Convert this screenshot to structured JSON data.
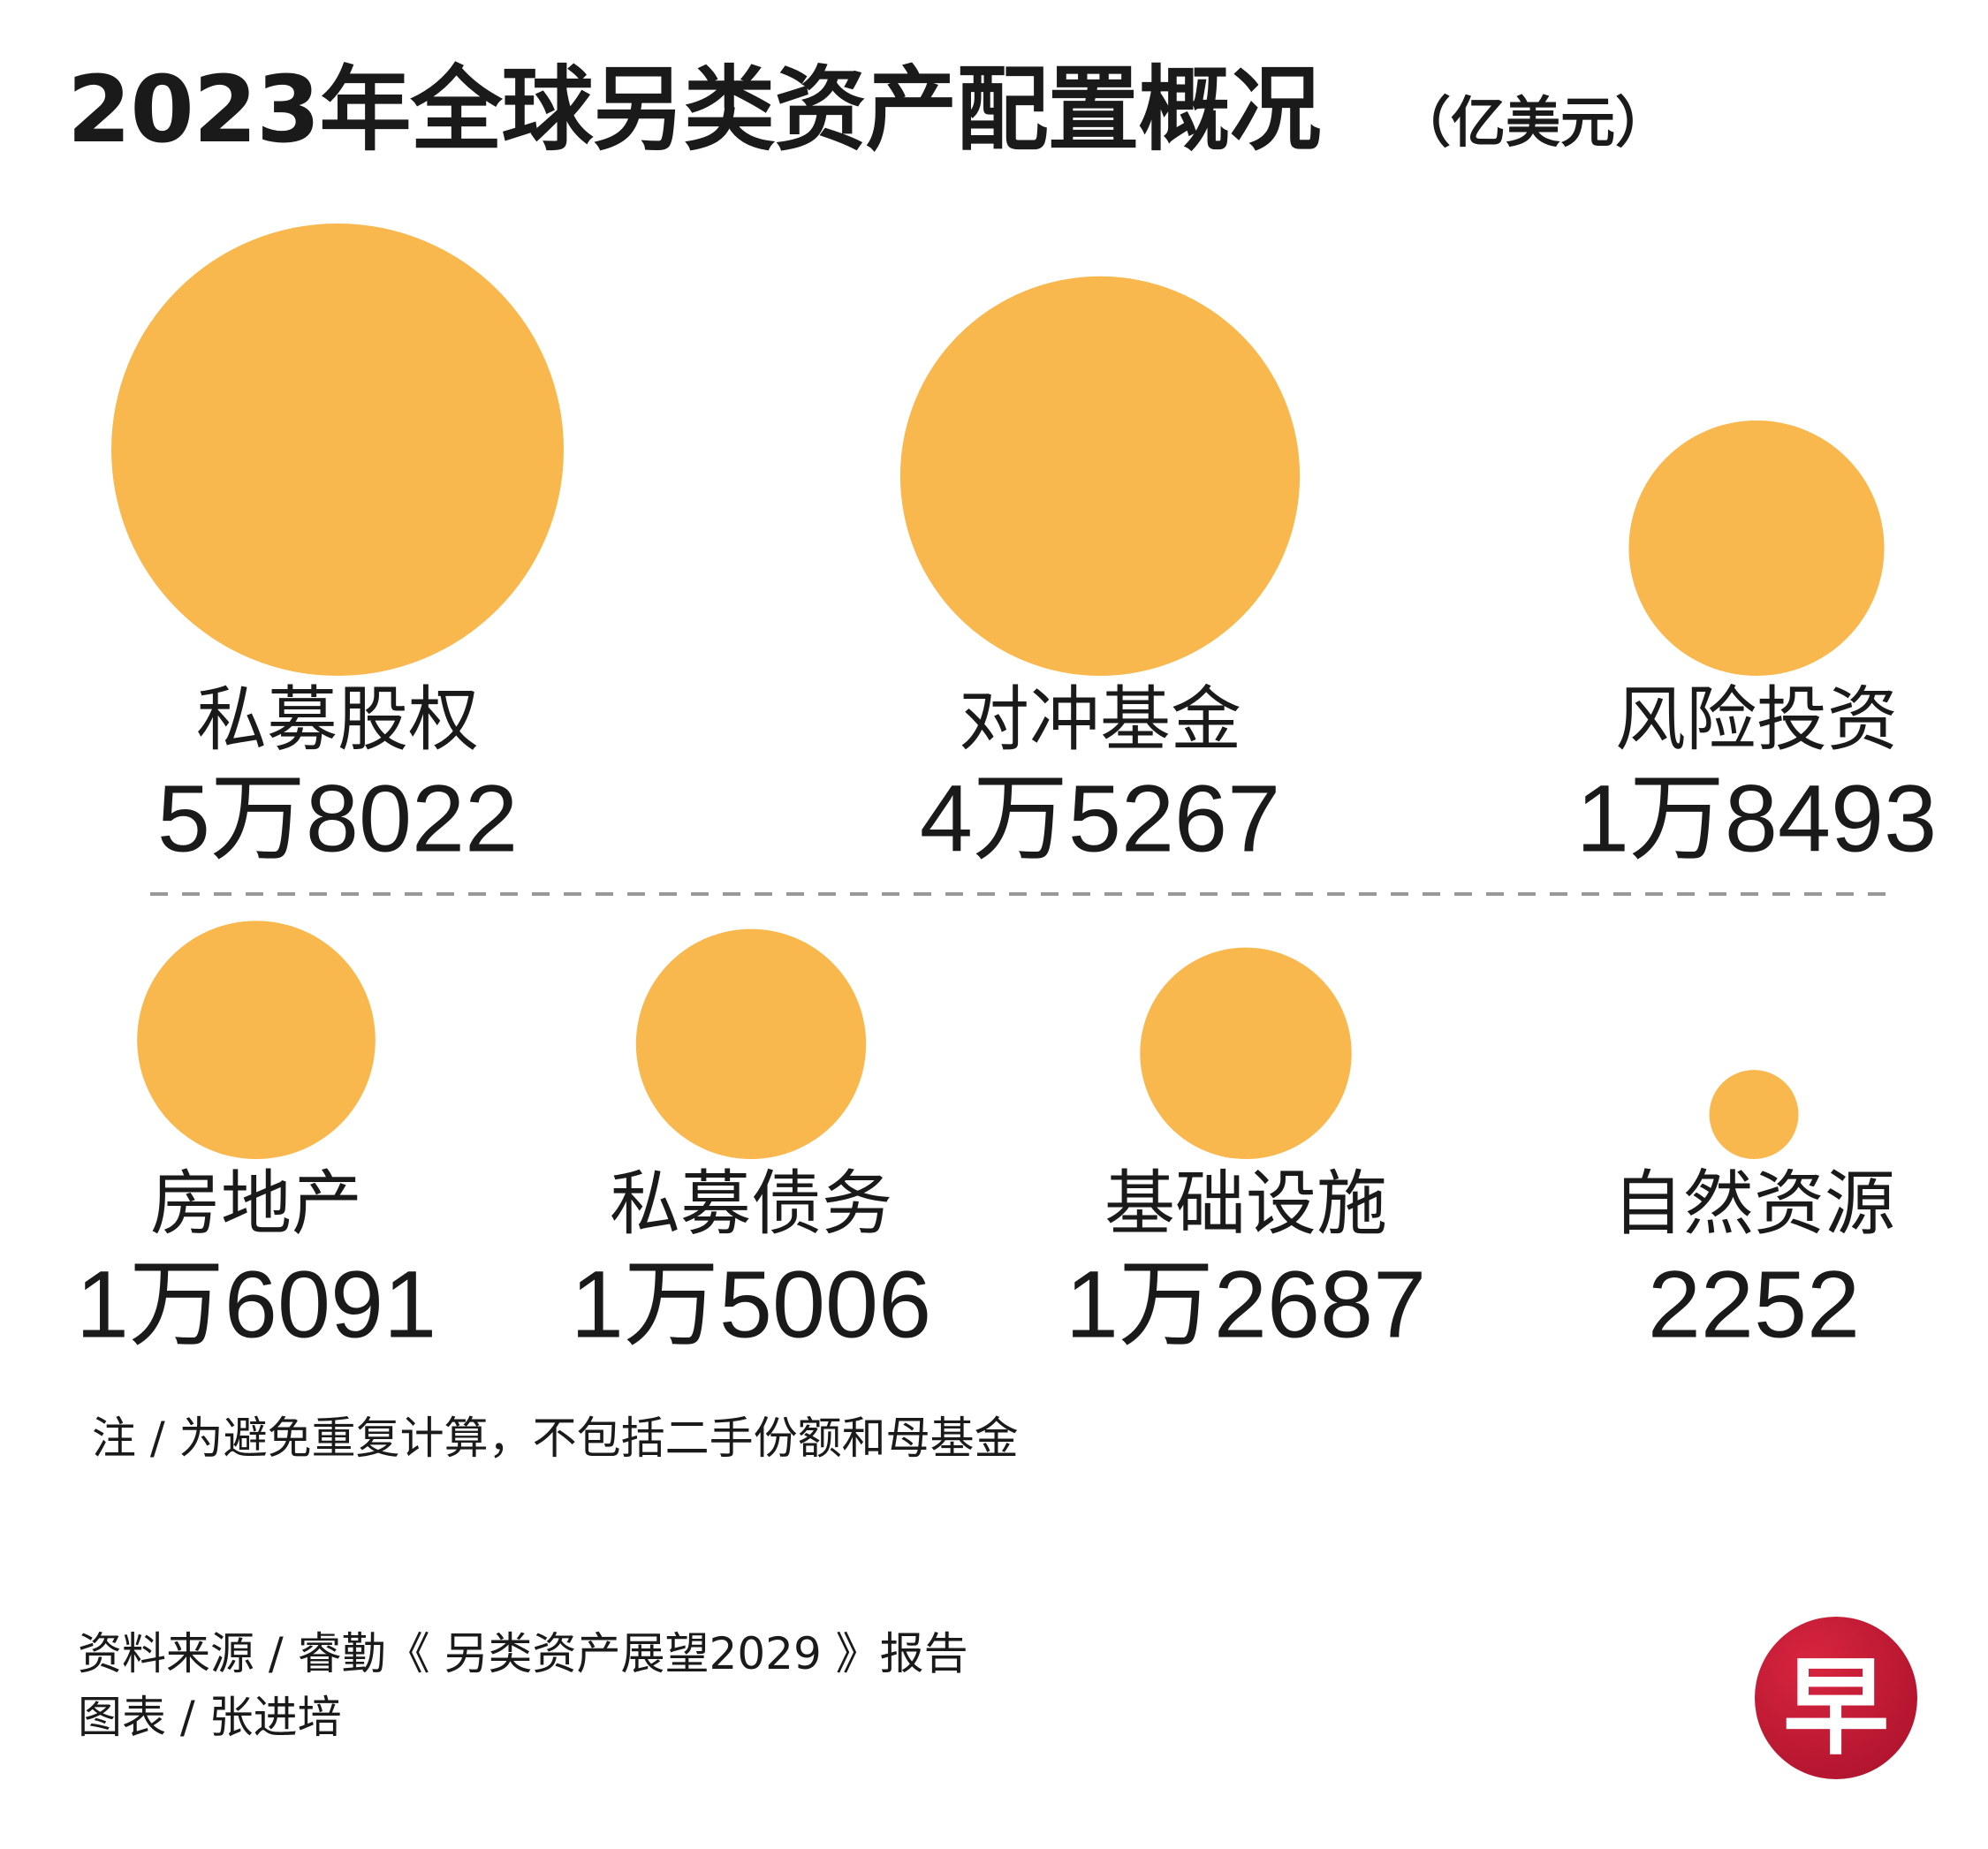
{
  "header": {
    "title": "2023年全球另类资产配置概况",
    "unit": "（亿美元）"
  },
  "colors": {
    "bubble": "#F9B84D",
    "text": "#1a1a1a",
    "divider": "#999999",
    "logo": "#C41A34"
  },
  "chart_data": {
    "type": "bubble",
    "unit": "亿美元",
    "categories": [
      "私募股权",
      "对冲基金",
      "风险投资",
      "房地产",
      "私募债务",
      "基础设施",
      "自然资源"
    ],
    "values": [
      58022,
      45267,
      18493,
      16091,
      15006,
      12687,
      2252
    ],
    "value_labels": [
      "5万8022",
      "4万5267",
      "1万8493",
      "1万6091",
      "1万5006",
      "1万2687",
      "2252"
    ]
  },
  "footer": {
    "note": "注 / 为避免重复计算，不包括二手份额和母基金",
    "source": "资料来源 / 睿勤《 另类资产展望2029 》报告",
    "credit": "图表 / 张进培",
    "logo_char": "早"
  }
}
